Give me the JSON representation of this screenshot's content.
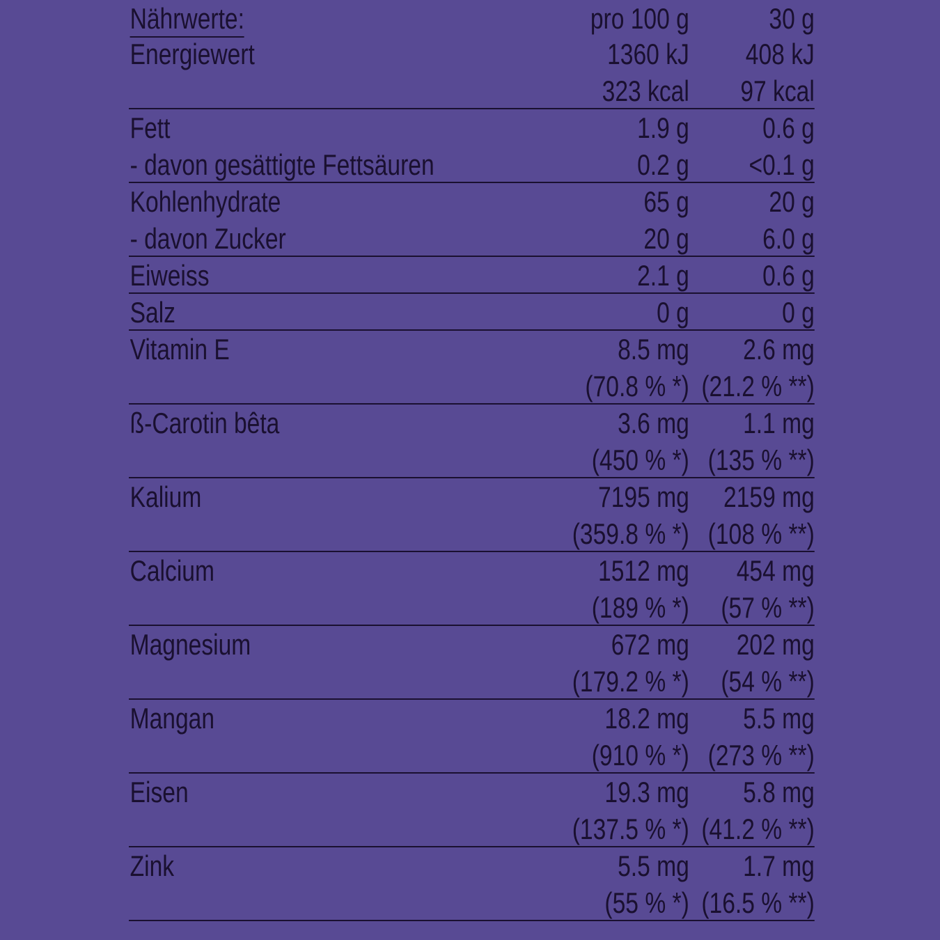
{
  "header": {
    "label": "Nährwerte:",
    "col1": "pro 100 g",
    "col2": "30 g"
  },
  "groups": [
    {
      "lines": [
        {
          "label": "Energiewert",
          "v1": "1360 kJ",
          "v2": "408 kJ"
        },
        {
          "label": "",
          "v1": "323 kcal",
          "v2": "97 kcal"
        }
      ]
    },
    {
      "lines": [
        {
          "label": "Fett",
          "v1": "1.9 g",
          "v2": "0.6 g"
        },
        {
          "label": "- davon gesättigte Fettsäuren",
          "v1": "0.2 g",
          "v2": "<0.1 g"
        }
      ]
    },
    {
      "lines": [
        {
          "label": "Kohlenhydrate",
          "v1": "65 g",
          "v2": "20 g"
        },
        {
          "label": "- davon Zucker",
          "v1": "20 g",
          "v2": "6.0 g"
        }
      ]
    },
    {
      "lines": [
        {
          "label": "Eiweiss",
          "v1": "2.1 g",
          "v2": "0.6 g"
        }
      ]
    },
    {
      "lines": [
        {
          "label": "Salz",
          "v1": "0 g",
          "v2": "0 g"
        }
      ]
    },
    {
      "lines": [
        {
          "label": "Vitamin E",
          "v1": "8.5 mg",
          "v2": "2.6 mg"
        },
        {
          "label": "",
          "v1": "(70.8 % *)",
          "v2": "(21.2 % **)"
        }
      ]
    },
    {
      "lines": [
        {
          "label": "ß-Carotin bêta",
          "v1": "3.6 mg",
          "v2": "1.1 mg"
        },
        {
          "label": "",
          "v1": "(450 % *)",
          "v2": "(135 % **)"
        }
      ]
    },
    {
      "lines": [
        {
          "label": "Kalium",
          "v1": "7195 mg",
          "v2": "2159 mg"
        },
        {
          "label": "",
          "v1": "(359.8 % *)",
          "v2": "(108 % **)"
        }
      ]
    },
    {
      "lines": [
        {
          "label": "Calcium",
          "v1": "1512 mg",
          "v2": "454 mg"
        },
        {
          "label": "",
          "v1": "(189 % *)",
          "v2": "(57 % **)"
        }
      ]
    },
    {
      "lines": [
        {
          "label": "Magnesium",
          "v1": "672 mg",
          "v2": "202 mg"
        },
        {
          "label": "",
          "v1": "(179.2 % *)",
          "v2": "(54 % **)"
        }
      ]
    },
    {
      "lines": [
        {
          "label": "Mangan",
          "v1": "18.2 mg",
          "v2": "5.5 mg"
        },
        {
          "label": "",
          "v1": "(910 % *)",
          "v2": "(273 % **)"
        }
      ]
    },
    {
      "lines": [
        {
          "label": "Eisen",
          "v1": "19.3 mg",
          "v2": "5.8 mg"
        },
        {
          "label": "",
          "v1": "(137.5 % *)",
          "v2": "(41.2 % **)"
        }
      ]
    },
    {
      "lines": [
        {
          "label": "Zink",
          "v1": "5.5 mg",
          "v2": "1.7 mg"
        },
        {
          "label": "",
          "v1": "(55 % *)",
          "v2": "(16.5 % **)"
        }
      ]
    }
  ],
  "colors": {
    "background": "#584a94",
    "text": "#1a1030"
  }
}
